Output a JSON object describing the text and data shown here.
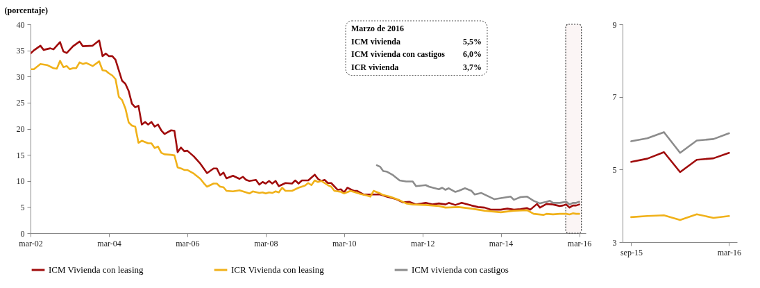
{
  "chart_data": [
    {
      "type": "line",
      "ylabel": "(porcentaje)",
      "xlim": [
        "2002-03",
        "2016-05"
      ],
      "xticks": [
        {
          "value": "2002-03",
          "label": "mar-02"
        },
        {
          "value": "2004-03",
          "label": "mar-04"
        },
        {
          "value": "2006-03",
          "label": "mar-06"
        },
        {
          "value": "2008-03",
          "label": "mar-08"
        },
        {
          "value": "2010-03",
          "label": "mar-10"
        },
        {
          "value": "2012-03",
          "label": "mar-12"
        },
        {
          "value": "2014-03",
          "label": "mar-14"
        },
        {
          "value": "2016-03",
          "label": "mar-16"
        }
      ],
      "ylim": [
        0,
        40
      ],
      "yticks": [
        0,
        5,
        10,
        15,
        20,
        25,
        30,
        35,
        40
      ],
      "legend": "bottom",
      "bands": [
        {
          "axis": "x",
          "from": "2015-10-27",
          "to": "2016-03-21",
          "color": "#f7eded"
        }
      ],
      "annotations": [
        "Marzo de 2016",
        "ICM vivienda",
        "5,5%",
        "ICM vivienda con castigos",
        "6,0%",
        "ICR vivienda",
        "3,7%"
      ],
      "series": [
        {
          "name": "ICM Vivienda con leasing",
          "color": "#a00c0c",
          "x": [
            "2002-03",
            "2002-04",
            "2002-06",
            "2002-07",
            "2002-09",
            "2002-10",
            "2002-12",
            "2003-01",
            "2003-02",
            "2003-04",
            "2003-06",
            "2003-07",
            "2003-10",
            "2003-12",
            "2004-01",
            "2004-02",
            "2004-03",
            "2004-04",
            "2004-05",
            "2004-07",
            "2004-08",
            "2004-09",
            "2004-10",
            "2004-11",
            "2004-12",
            "2005-01",
            "2005-02",
            "2005-03",
            "2005-04",
            "2005-05",
            "2005-06",
            "2005-07",
            "2005-08",
            "2005-10",
            "2005-11",
            "2005-12",
            "2006-01",
            "2006-02",
            "2006-03",
            "2006-05",
            "2006-07",
            "2006-08",
            "2006-09",
            "2006-11",
            "2006-12",
            "2007-01",
            "2007-02",
            "2007-03",
            "2007-05",
            "2007-07",
            "2007-08",
            "2007-09",
            "2007-10",
            "2007-12",
            "2008-01",
            "2008-02",
            "2008-03",
            "2008-04",
            "2008-05",
            "2008-06",
            "2008-07",
            "2008-09",
            "2008-11",
            "2008-12",
            "2009-01",
            "2009-02",
            "2009-04",
            "2009-06",
            "2009-07",
            "2009-08",
            "2009-09",
            "2009-10",
            "2009-11",
            "2010-01",
            "2010-02",
            "2010-03",
            "2010-04",
            "2010-06",
            "2010-07",
            "2010-09",
            "2010-11",
            "2010-12",
            "2011-02",
            "2011-04",
            "2011-07",
            "2011-09",
            "2011-11",
            "2012-01",
            "2012-04",
            "2012-06",
            "2012-08",
            "2012-10",
            "2012-11",
            "2013-01",
            "2013-03",
            "2013-06",
            "2013-08",
            "2013-10",
            "2013-12",
            "2014-03",
            "2014-05",
            "2014-07",
            "2014-09",
            "2014-11",
            "2014-12",
            "2015-02",
            "2015-03",
            "2015-05",
            "2015-07",
            "2015-09",
            "2015-10",
            "2015-11",
            "2015-12",
            "2016-01",
            "2016-02",
            "2016-03"
          ],
          "values": [
            34.4,
            35.0,
            35.9,
            35.1,
            35.4,
            35.2,
            36.6,
            34.8,
            34.5,
            35.8,
            36.7,
            35.8,
            35.9,
            36.9,
            33.9,
            34.4,
            33.9,
            33.9,
            33.2,
            29.2,
            28.6,
            27.2,
            24.8,
            24.1,
            24.4,
            20.8,
            21.3,
            20.8,
            21.3,
            20.4,
            20.8,
            19.7,
            19.0,
            19.7,
            19.6,
            15.5,
            16.4,
            15.7,
            15.8,
            14.7,
            13.3,
            12.4,
            11.5,
            12.4,
            12.4,
            11.1,
            11.6,
            10.5,
            11.0,
            10.4,
            10.8,
            10.2,
            10.0,
            10.2,
            9.3,
            9.8,
            9.5,
            10.0,
            9.5,
            10.0,
            9.0,
            9.6,
            9.5,
            10.1,
            9.5,
            10.1,
            10.1,
            11.2,
            10.4,
            10.0,
            10.2,
            9.6,
            9.6,
            8.3,
            8.4,
            7.8,
            8.7,
            8.1,
            8.1,
            7.4,
            7.4,
            7.4,
            7.4,
            7.0,
            6.5,
            5.9,
            6.0,
            5.5,
            5.8,
            5.5,
            5.7,
            5.5,
            5.8,
            5.4,
            5.8,
            5.3,
            5.0,
            4.9,
            4.5,
            4.5,
            4.7,
            4.5,
            4.6,
            4.8,
            4.5,
            5.6,
            4.9,
            5.6,
            5.5,
            5.2,
            5.3,
            5.5,
            4.9,
            5.3,
            5.3,
            5.5
          ]
        },
        {
          "name": "ICR Vivienda con leasing",
          "color": "#f0b119",
          "x": [
            "2002-03",
            "2002-04",
            "2002-06",
            "2002-08",
            "2002-10",
            "2002-11",
            "2002-12",
            "2003-01",
            "2003-02",
            "2003-03",
            "2003-04",
            "2003-05",
            "2003-06",
            "2003-07",
            "2003-08",
            "2003-10",
            "2003-12",
            "2004-01",
            "2004-02",
            "2004-03",
            "2004-04",
            "2004-05",
            "2004-06",
            "2004-07",
            "2004-08",
            "2004-09",
            "2004-10",
            "2004-11",
            "2004-12",
            "2005-01",
            "2005-03",
            "2005-04",
            "2005-05",
            "2005-06",
            "2005-07",
            "2005-08",
            "2005-10",
            "2005-11",
            "2005-12",
            "2006-01",
            "2006-02",
            "2006-03",
            "2006-05",
            "2006-07",
            "2006-08",
            "2006-09",
            "2006-11",
            "2006-12",
            "2007-01",
            "2007-02",
            "2007-03",
            "2007-05",
            "2007-07",
            "2007-09",
            "2007-10",
            "2007-11",
            "2008-01",
            "2008-02",
            "2008-03",
            "2008-04",
            "2008-05",
            "2008-06",
            "2008-07",
            "2008-08",
            "2008-09",
            "2008-11",
            "2009-01",
            "2009-03",
            "2009-04",
            "2009-05",
            "2009-06",
            "2009-07",
            "2009-08",
            "2009-10",
            "2009-11",
            "2009-12",
            "2010-02",
            "2010-03",
            "2010-05",
            "2010-07",
            "2010-08",
            "2010-10",
            "2010-11",
            "2010-12",
            "2011-02",
            "2011-03",
            "2011-05",
            "2011-08",
            "2011-10",
            "2011-12",
            "2012-04",
            "2012-08",
            "2012-10",
            "2013-02",
            "2013-06",
            "2013-10",
            "2014-03",
            "2014-07",
            "2014-11",
            "2015-01",
            "2015-04",
            "2015-05",
            "2015-07",
            "2015-09",
            "2015-10",
            "2015-11",
            "2015-12",
            "2016-01",
            "2016-02",
            "2016-03"
          ],
          "values": [
            31.4,
            31.4,
            32.4,
            32.2,
            31.6,
            31.5,
            33.0,
            31.8,
            32.0,
            31.4,
            31.6,
            31.6,
            32.7,
            32.4,
            32.6,
            32.0,
            32.9,
            31.2,
            31.1,
            30.6,
            30.2,
            29.5,
            26.1,
            25.5,
            23.9,
            21.2,
            20.6,
            20.4,
            17.3,
            17.7,
            17.2,
            17.2,
            16.3,
            16.6,
            15.4,
            15.1,
            15.0,
            14.9,
            12.6,
            12.4,
            12.1,
            12.1,
            11.4,
            10.4,
            9.6,
            8.9,
            9.5,
            9.5,
            8.9,
            8.8,
            8.1,
            8.0,
            8.2,
            7.8,
            7.6,
            8.0,
            7.7,
            7.8,
            7.6,
            7.8,
            7.7,
            8.0,
            7.8,
            8.7,
            8.1,
            8.1,
            8.7,
            9.1,
            9.6,
            9.2,
            10.1,
            9.8,
            10.0,
            9.2,
            8.9,
            8.1,
            7.9,
            7.6,
            8.1,
            7.7,
            7.5,
            7.2,
            7.0,
            8.1,
            7.6,
            7.3,
            7.0,
            6.3,
            5.7,
            5.5,
            5.4,
            5.2,
            4.9,
            5.0,
            4.7,
            4.3,
            4.0,
            4.3,
            4.4,
            3.7,
            3.5,
            3.7,
            3.6,
            3.7,
            3.7,
            3.7,
            3.6,
            3.8,
            3.7,
            3.7
          ]
        },
        {
          "name": "ICM vivienda con castigos",
          "color": "#8c8c8c",
          "x": [
            "2011-01",
            "2011-02",
            "2011-03",
            "2011-04",
            "2011-06",
            "2011-08",
            "2011-10",
            "2011-12",
            "2012-01",
            "2012-04",
            "2012-05",
            "2012-08",
            "2012-09",
            "2012-10",
            "2012-11",
            "2013-01",
            "2013-02",
            "2013-04",
            "2013-06",
            "2013-07",
            "2013-09",
            "2013-11",
            "2014-01",
            "2014-03",
            "2014-05",
            "2014-06",
            "2014-07",
            "2014-09",
            "2014-11",
            "2015-01",
            "2015-03",
            "2015-05",
            "2015-06",
            "2015-07",
            "2015-09",
            "2015-10",
            "2015-11",
            "2015-12",
            "2016-01",
            "2016-02",
            "2016-03"
          ],
          "values": [
            13.0,
            12.7,
            11.9,
            11.8,
            11.1,
            10.1,
            9.9,
            9.9,
            9.0,
            9.2,
            8.9,
            8.4,
            8.7,
            8.3,
            8.6,
            7.9,
            8.1,
            8.6,
            8.1,
            7.4,
            7.7,
            7.1,
            6.5,
            6.7,
            6.9,
            7.0,
            6.4,
            6.9,
            7.0,
            6.2,
            5.7,
            6.0,
            6.2,
            5.8,
            5.8,
            5.9,
            6.0,
            5.5,
            5.8,
            5.8,
            6.0
          ]
        }
      ]
    },
    {
      "type": "line",
      "xlim": [
        "2015-08-16",
        "2016-03-16"
      ],
      "xticks": [
        {
          "value": "2015-09",
          "label": "sep-15"
        },
        {
          "value": "2016-03",
          "label": "mar-16"
        }
      ],
      "ylim": [
        3,
        9
      ],
      "yticks": [
        3,
        5,
        7,
        9
      ],
      "x": [
        "2015-09",
        "2015-10",
        "2015-11",
        "2015-12",
        "2016-01",
        "2016-02",
        "2016-03"
      ],
      "series": [
        {
          "color": "#a00c0c",
          "values": [
            5.21,
            5.3,
            5.48,
            4.93,
            5.27,
            5.31,
            5.46
          ]
        },
        {
          "color": "#f0b119",
          "values": [
            3.69,
            3.72,
            3.74,
            3.61,
            3.77,
            3.67,
            3.72
          ]
        },
        {
          "color": "#8c8c8c",
          "values": [
            5.78,
            5.86,
            6.03,
            5.46,
            5.8,
            5.84,
            6.0
          ]
        }
      ]
    }
  ]
}
